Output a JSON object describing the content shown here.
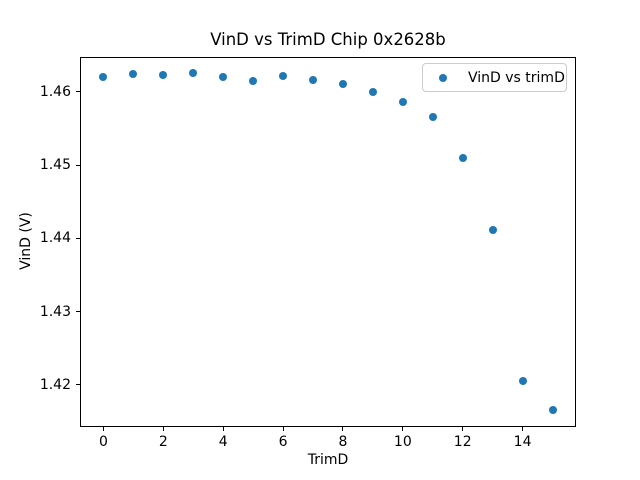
{
  "figure": {
    "background": "#ffffff",
    "text_color": "#000000",
    "legend_border_color": "#cccccc"
  },
  "chart_data": {
    "type": "scatter",
    "title": "VinD vs TrimD Chip 0x2628b",
    "xlabel": "TrimD",
    "ylabel": "VinD (V)",
    "grid": false,
    "legend_position": "upper right",
    "xlim": [
      -0.75,
      15.75
    ],
    "ylim": [
      1.4144,
      1.4646
    ],
    "xticks": [
      0,
      2,
      4,
      6,
      8,
      10,
      12,
      14
    ],
    "yticks": [
      1.42,
      1.43,
      1.44,
      1.45,
      1.46
    ],
    "series": [
      {
        "name": "VinD vs trimD",
        "color": "#1f77b4",
        "marker": "circle",
        "x": [
          0,
          1,
          2,
          3,
          4,
          5,
          6,
          7,
          8,
          9,
          10,
          11,
          12,
          13,
          14,
          15
        ],
        "y": [
          1.462,
          1.4624,
          1.4623,
          1.4626,
          1.462,
          1.4615,
          1.4622,
          1.4616,
          1.4611,
          1.46,
          1.4586,
          1.4565,
          1.451,
          1.4412,
          1.4205,
          1.4166
        ]
      }
    ]
  }
}
